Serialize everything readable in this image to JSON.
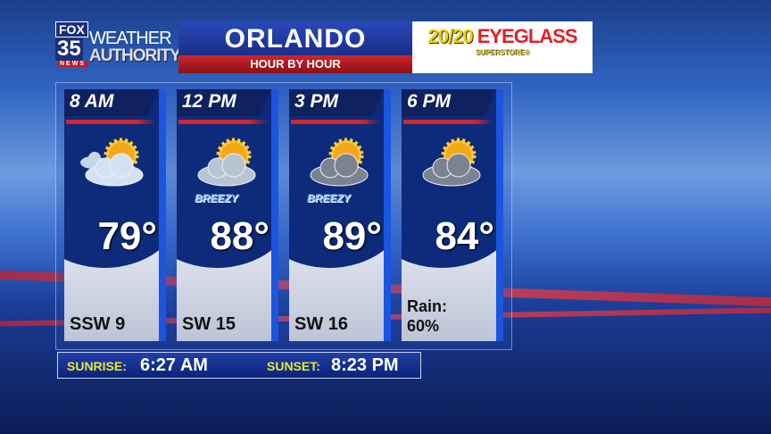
{
  "header": {
    "logo": {
      "fox": "FOX",
      "number": "35",
      "news": "NEWS",
      "line1": "WEATHER",
      "line2": "AUTHORITY"
    },
    "title": "ORLANDO",
    "subtitle": "HOUR BY HOUR",
    "sponsor": {
      "name_a": "20/20",
      "name_b": "EYEGLASS",
      "tagline": "SUPERSTORE®"
    }
  },
  "forecast": [
    {
      "time": "8 AM",
      "icon": "partly-sunny-icon",
      "temp": "79°",
      "wind": "SSW 9"
    },
    {
      "time": "12 PM",
      "icon": "mostly-cloudy-icon",
      "badge": "BREEZY",
      "temp": "88°",
      "wind": "SW 15"
    },
    {
      "time": "3 PM",
      "icon": "cloudy-sun-icon",
      "badge": "BREEZY",
      "temp": "89°",
      "wind": "SW 16"
    },
    {
      "time": "6 PM",
      "icon": "cloudy-sun-icon",
      "temp": "84°",
      "rain_label": "Rain:",
      "rain_value": "60%"
    }
  ],
  "sun": {
    "sunrise_label": "SUNRISE:",
    "sunrise": "6:27 AM",
    "sunset_label": "SUNSET:",
    "sunset": "8:23 PM"
  },
  "colors": {
    "accent_red": "#d0262e",
    "navy": "#0e2a7a",
    "label_yellow": "#e8e83a"
  }
}
